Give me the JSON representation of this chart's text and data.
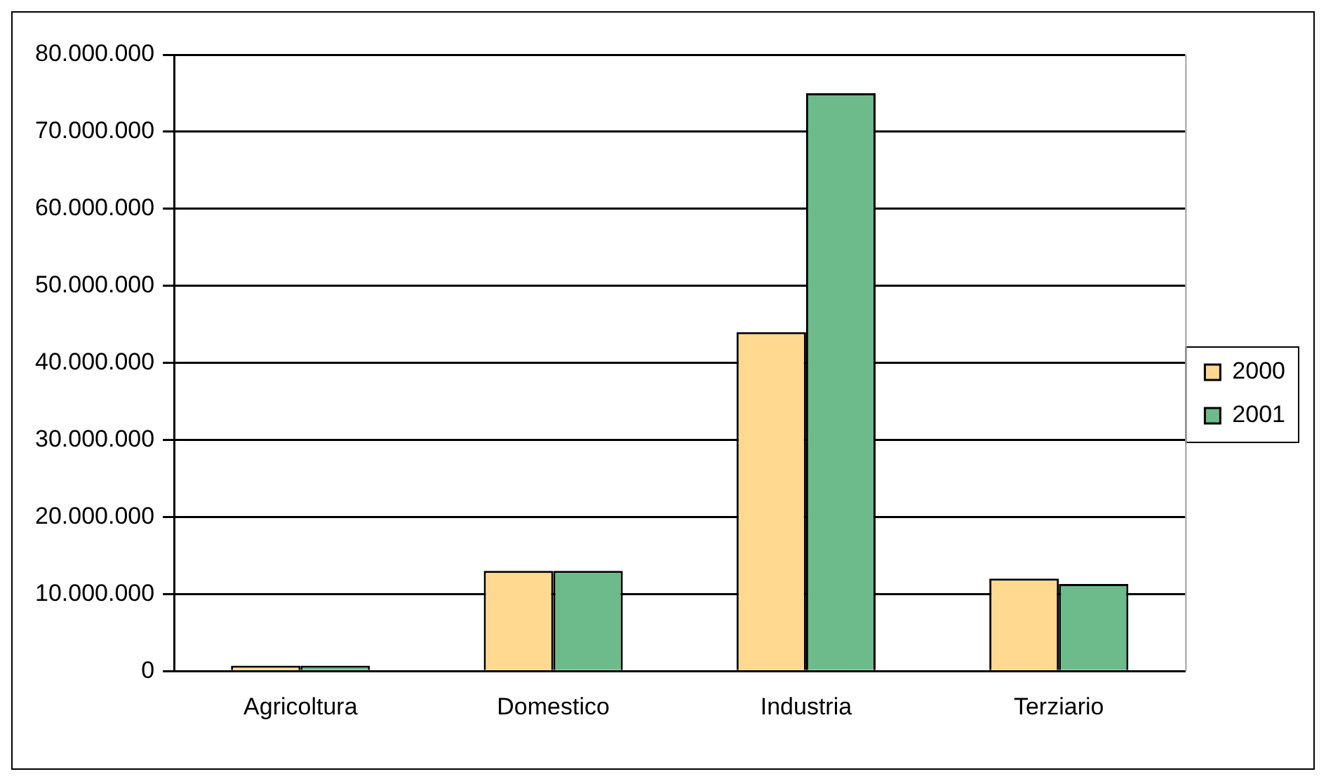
{
  "chart_data": {
    "type": "bar",
    "categories": [
      "Agricoltura",
      "Domestico",
      "Industria",
      "Terziario"
    ],
    "series": [
      {
        "name": "2000",
        "color": "#ffd98f",
        "values": [
          700000,
          13000000,
          44000000,
          12000000
        ]
      },
      {
        "name": "2001",
        "color": "#6dbb8a",
        "values": [
          700000,
          13000000,
          75000000,
          11300000
        ]
      }
    ],
    "ylim": [
      0,
      80000000
    ],
    "yticks": [
      0,
      {
        "value": 10000000,
        "label": "10.000.000"
      },
      {
        "value": 20000000,
        "label": "20.000.000"
      },
      {
        "value": 30000000,
        "label": "30.000.000"
      },
      {
        "value": 40000000,
        "label": "40.000.000"
      },
      {
        "value": 50000000,
        "label": "50.000.000"
      },
      {
        "value": 60000000,
        "label": "60.000.000"
      },
      {
        "value": 70000000,
        "label": "70.000.000"
      },
      {
        "value": 80000000,
        "label": "80.000.000"
      }
    ],
    "grid": "y",
    "legend": "right"
  }
}
